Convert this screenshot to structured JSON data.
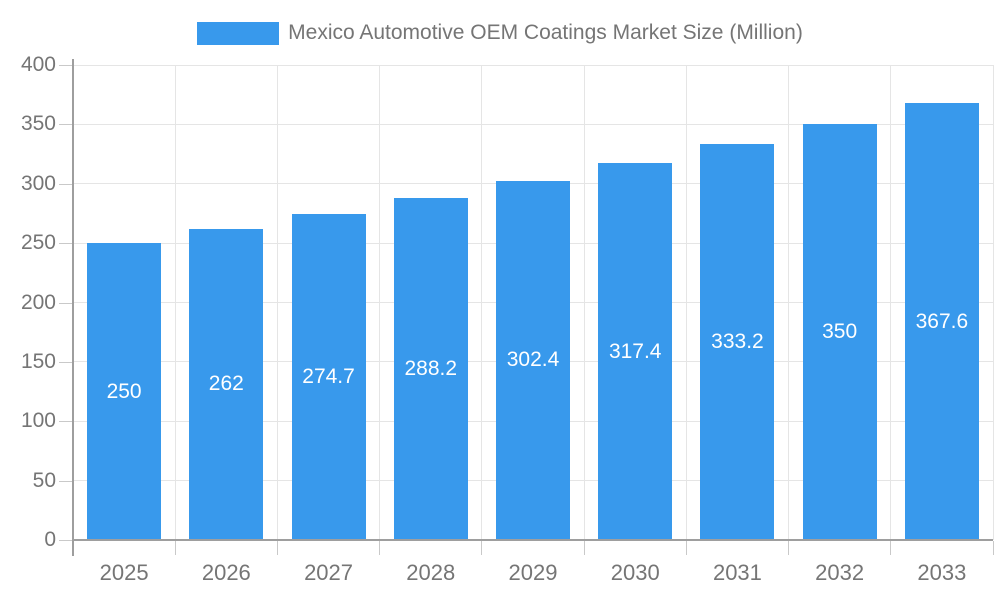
{
  "chart": {
    "title": "Mexico Automotive OEM Coatings Market Size (Million)"
  },
  "chart_data": {
    "type": "bar",
    "title": "Mexico Automotive OEM Coatings Market Size (Million)",
    "categories": [
      "2025",
      "2026",
      "2027",
      "2028",
      "2029",
      "2030",
      "2031",
      "2032",
      "2033"
    ],
    "values": [
      250,
      262,
      274.7,
      288.2,
      302.4,
      317.4,
      333.2,
      350,
      367.6
    ],
    "value_labels": [
      "250",
      "262",
      "274.7",
      "288.2",
      "302.4",
      "317.4",
      "333.2",
      "350",
      "367.6"
    ],
    "xlabel": "",
    "ylabel": "",
    "ylim": [
      0,
      400
    ],
    "yticks": [
      0,
      50,
      100,
      150,
      200,
      250,
      300,
      350,
      400
    ],
    "grid": true,
    "legend_position": "top-center",
    "series_name": "Mexico Automotive OEM Coatings Market Size (Million)"
  },
  "colors": {
    "bar": "#3899EC",
    "axis": "#9e9e9e",
    "grid": "#e5e5e5",
    "tick": "#c9c9c9",
    "label_text": "#757575",
    "value_label_text": "#ffffff",
    "background": "#ffffff"
  }
}
